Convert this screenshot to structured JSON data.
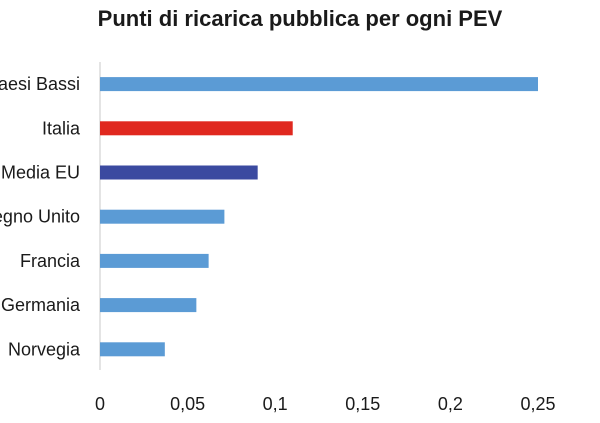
{
  "chart_data": {
    "type": "bar",
    "orientation": "horizontal",
    "title": "Punti di ricarica pubblica per ogni PEV",
    "categories": [
      "Paesi Bassi",
      "Italia",
      "Media EU",
      "Regno Unito",
      "Francia",
      "Germania",
      "Norvegia"
    ],
    "values": [
      0.25,
      0.11,
      0.09,
      0.071,
      0.062,
      0.055,
      0.037
    ],
    "bar_colors": [
      "#5b9bd5",
      "#e0281f",
      "#3b4aa0",
      "#5b9bd5",
      "#5b9bd5",
      "#5b9bd5",
      "#5b9bd5"
    ],
    "xlim": [
      0,
      0.25
    ],
    "xticks": [
      0,
      0.05,
      0.1,
      0.15,
      0.2,
      0.25
    ],
    "xtick_labels": [
      "0",
      "0,05",
      "0,1",
      "0,15",
      "0,2",
      "0,25"
    ],
    "grid": false,
    "axis_color": "#c9c9c9"
  }
}
